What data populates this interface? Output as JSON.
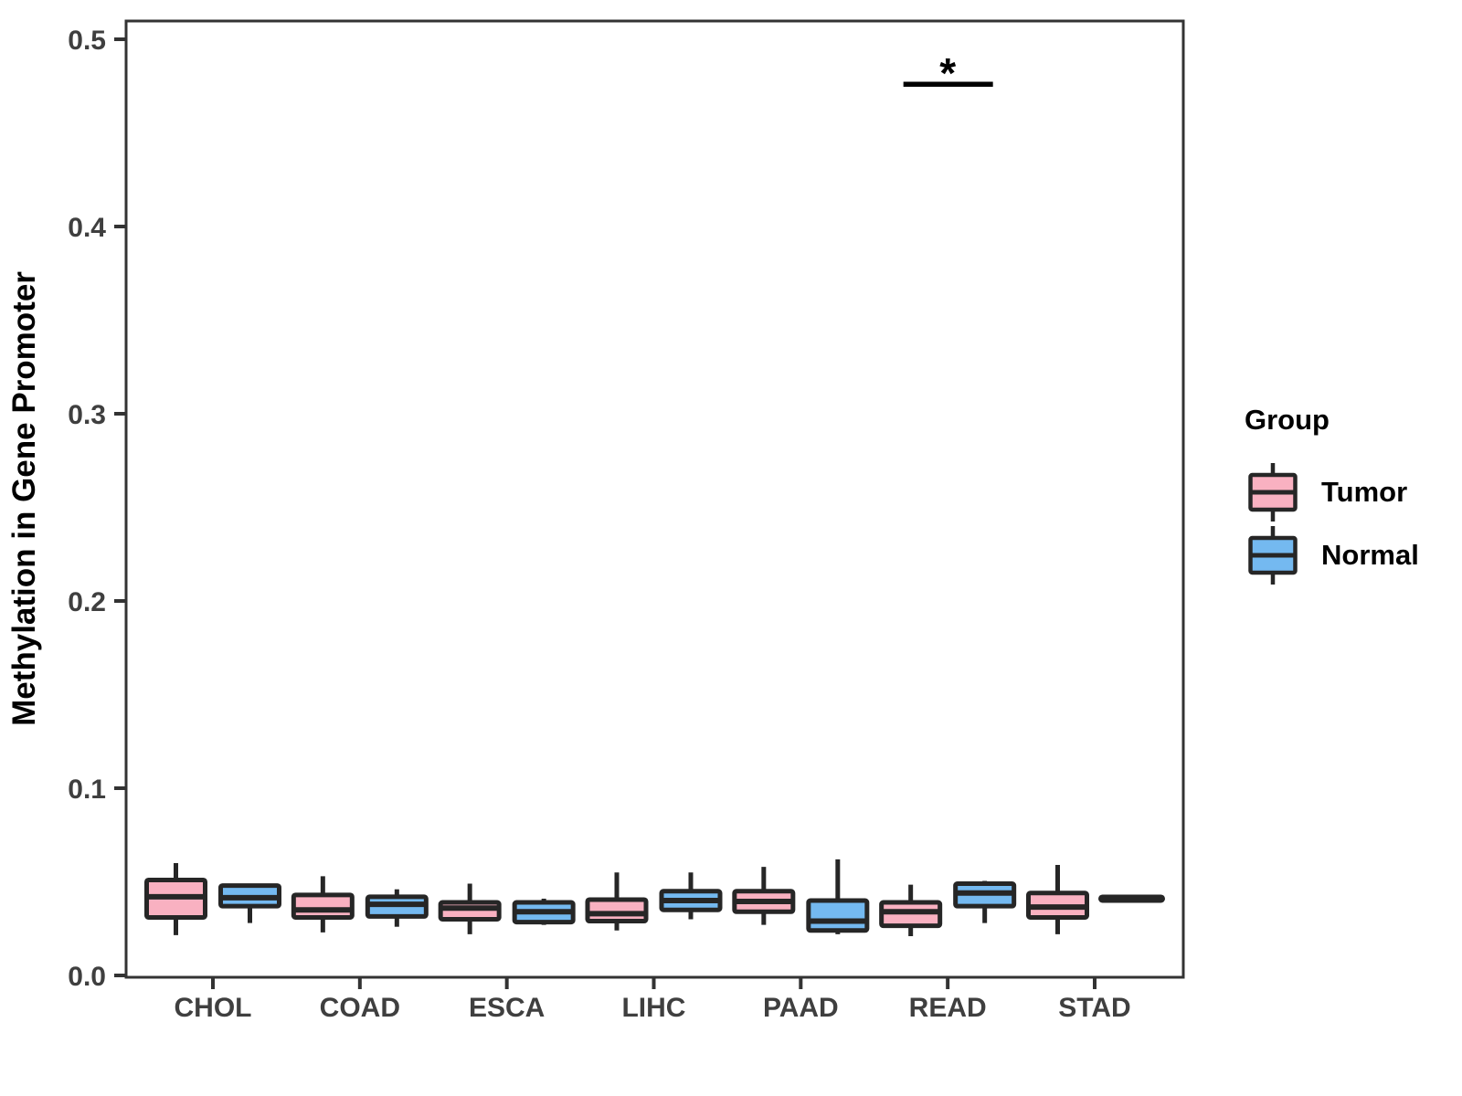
{
  "figure": {
    "legend": {
      "title": "Group",
      "entries": [
        {
          "label": "Tumor",
          "color": "#F9B1C1"
        },
        {
          "label": "Normal",
          "color": "#74B9F0"
        }
      ]
    }
  },
  "chart_data": {
    "type": "boxplot",
    "title": "",
    "xlabel": "",
    "ylabel": "Methylation in Gene Promoter",
    "ylim": [
      0.0,
      0.5
    ],
    "ytick_values": [
      0.0,
      0.1,
      0.2,
      0.3,
      0.4,
      0.5
    ],
    "ytick_labels": [
      "0.0",
      "0.1",
      "0.2",
      "0.3",
      "0.4",
      "0.5"
    ],
    "categories": [
      "CHOL",
      "COAD",
      "ESCA",
      "LIHC",
      "PAAD",
      "READ",
      "STAD"
    ],
    "stat_keys": [
      "min",
      "q1",
      "median",
      "q3",
      "max"
    ],
    "series": [
      {
        "name": "Tumor",
        "color": "#F9B1C1",
        "values": [
          [
            0.0215,
            0.031,
            0.042,
            0.051,
            0.06
          ],
          [
            0.023,
            0.031,
            0.035,
            0.043,
            0.053
          ],
          [
            0.022,
            0.03,
            0.036,
            0.039,
            0.049
          ],
          [
            0.024,
            0.029,
            0.033,
            0.0405,
            0.055
          ],
          [
            0.027,
            0.034,
            0.0395,
            0.045,
            0.058
          ],
          [
            0.021,
            0.0265,
            0.034,
            0.039,
            0.0485
          ],
          [
            0.022,
            0.031,
            0.0365,
            0.044,
            0.059
          ]
        ]
      },
      {
        "name": "Normal",
        "color": "#74B9F0",
        "values": [
          [
            0.028,
            0.037,
            0.0415,
            0.048,
            0.048
          ],
          [
            0.026,
            0.0315,
            0.038,
            0.042,
            0.046
          ],
          [
            0.027,
            0.0285,
            0.034,
            0.039,
            0.041
          ],
          [
            0.03,
            0.035,
            0.04,
            0.045,
            0.055
          ],
          [
            0.022,
            0.024,
            0.029,
            0.04,
            0.062
          ],
          [
            0.028,
            0.037,
            0.044,
            0.049,
            0.0505
          ],
          [
            0.041,
            0.041,
            0.041,
            0.041,
            0.041
          ]
        ]
      }
    ],
    "annotations": [
      {
        "type": "significance",
        "label": "*",
        "category": "READ",
        "between": [
          "Tumor",
          "Normal"
        ],
        "bar_y": 0.476
      }
    ],
    "legend_position": "right",
    "grid": false,
    "colors": {
      "box_border": "#262626",
      "axis": "#333333",
      "tick_labels": "#3F3F3F",
      "text": "#000000"
    }
  }
}
